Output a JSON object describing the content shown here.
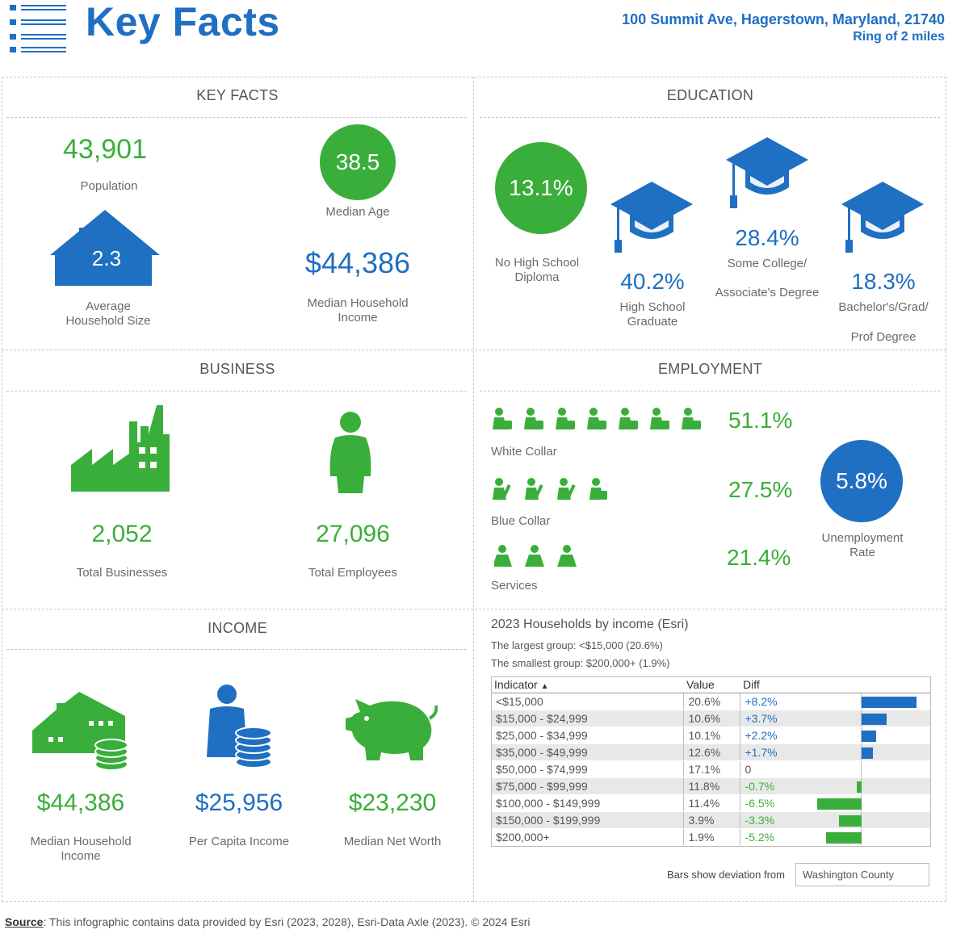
{
  "header": {
    "title": "Key Facts",
    "address": "100 Summit Ave, Hagerstown, Maryland, 21740",
    "ring": "Ring of 2 miles"
  },
  "key_facts": {
    "title": "KEY FACTS",
    "population": {
      "value": "43,901",
      "label": "Population"
    },
    "median_age": {
      "value": "38.5",
      "label": "Median Age"
    },
    "household_size": {
      "value": "2.3",
      "label_1": "Average",
      "label_2": "Household Size"
    },
    "median_household_income": {
      "value": "$44,386",
      "label_1": "Median Household",
      "label_2": "Income"
    }
  },
  "education": {
    "title": "EDUCATION",
    "no_high_school": {
      "value": "13.1%",
      "label_1": "No High School",
      "label_2": "Diploma"
    },
    "high_school": {
      "value": "40.2%",
      "label_1": "High School",
      "label_2": "Graduate"
    },
    "some_college": {
      "value": "28.4%",
      "label_1": "Some College/",
      "label_2": "Associate's Degree"
    },
    "bachelors": {
      "value": "18.3%",
      "label_1": "Bachelor's/Grad/",
      "label_2": "Prof Degree"
    }
  },
  "business": {
    "title": "BUSINESS",
    "total_businesses": {
      "value": "2,052",
      "label": "Total Businesses"
    },
    "total_employees": {
      "value": "27,096",
      "label": "Total Employees"
    }
  },
  "employment": {
    "title": "EMPLOYMENT",
    "white_collar": {
      "value": "51.1%",
      "label": "White Collar"
    },
    "blue_collar": {
      "value": "27.5%",
      "label": "Blue Collar"
    },
    "services": {
      "value": "21.4%",
      "label": "Services"
    },
    "unemployment": {
      "value": "5.8%",
      "label_1": "Unemployment",
      "label_2": "Rate"
    }
  },
  "income": {
    "title": "INCOME",
    "median_household_income": {
      "value": "$44,386",
      "label_1": "Median Household",
      "label_2": "Income"
    },
    "per_capita_income": {
      "value": "$25,956",
      "label": "Per Capita Income"
    },
    "median_net_worth": {
      "value": "$23,230",
      "label": "Median Net Worth"
    }
  },
  "households_by_income": {
    "title": "2023 Households by income (Esri)",
    "largest": "The largest group: <$15,000 (20.6%)",
    "smallest": "The smallest group: $200,000+ (1.9%)",
    "headers": {
      "indicator": "Indicator",
      "sort_glyph": "▲",
      "value": "Value",
      "diff": "Diff"
    },
    "deviation_label": "Bars show deviation from",
    "deviation_area": "Washington County"
  },
  "chart_data": {
    "type": "bar",
    "title": "2023 Households by income (Esri)",
    "categories": [
      "<$15,000",
      "$15,000 - $24,999",
      "$25,000 - $34,999",
      "$35,000 - $49,999",
      "$50,000 - $74,999",
      "$75,000 - $99,999",
      "$100,000 - $149,999",
      "$150,000 - $199,999",
      "$200,000+"
    ],
    "value_labels": [
      "20.6%",
      "10.6%",
      "10.1%",
      "12.6%",
      "17.1%",
      "11.8%",
      "11.4%",
      "3.9%",
      "1.9%"
    ],
    "diff_labels": [
      "+8.2%",
      "+3.7%",
      "+2.2%",
      "+1.7%",
      "0",
      "-0.7%",
      "-6.5%",
      "-3.3%",
      "-5.2%"
    ],
    "diffs": [
      8.2,
      3.7,
      2.2,
      1.7,
      0,
      -0.7,
      -6.5,
      -3.3,
      -5.2
    ],
    "series": [
      {
        "name": "Deviation from Washington County",
        "values": [
          8.2,
          3.7,
          2.2,
          1.7,
          0,
          -0.7,
          -6.5,
          -3.3,
          -5.2
        ]
      }
    ],
    "positive_color": "#1f6fc2",
    "negative_color": "#3aae3a"
  },
  "source": {
    "label": "Source",
    "text": ": This infographic contains data provided by Esri (2023, 2028), Esri-Data Axle (2023). © 2024 Esri"
  },
  "colors": {
    "brand_blue": "#1f6fc2",
    "green": "#3aae3a"
  }
}
